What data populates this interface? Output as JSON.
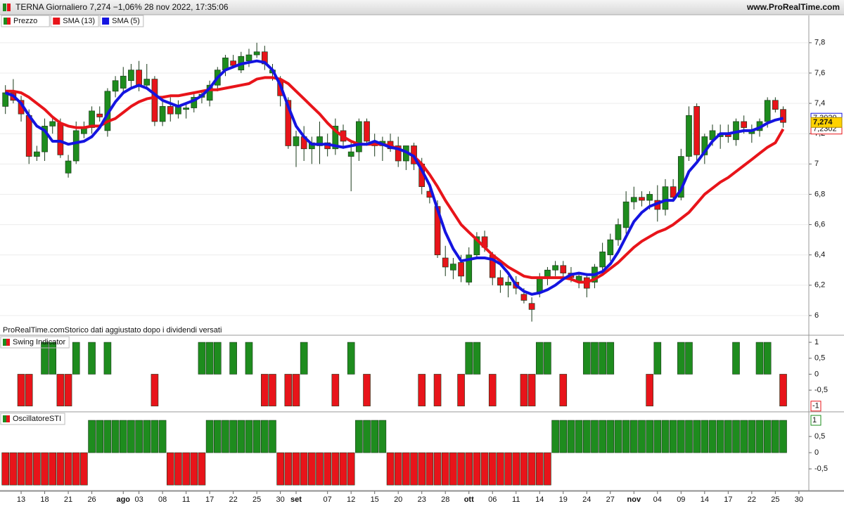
{
  "chart_data": [
    {
      "type": "candlestick",
      "title": "TERNA Giornaliero 7,274 −1,06% 28 nov 2022, 17:35:06",
      "source": "www.ProRealTime.com",
      "note": "ProRealTime.comStorico dati aggiustato dopo i dividendi versati",
      "categories": [
        null,
        null,
        "13",
        null,
        null,
        "18",
        null,
        null,
        "21",
        null,
        null,
        "26",
        null,
        null,
        null,
        "ago",
        null,
        "03",
        null,
        null,
        "08",
        null,
        null,
        "11",
        null,
        null,
        "17",
        null,
        null,
        "22",
        null,
        null,
        "25",
        null,
        null,
        "30",
        null,
        "set",
        null,
        null,
        null,
        "07",
        null,
        null,
        "12",
        null,
        null,
        "15",
        null,
        null,
        "20",
        null,
        null,
        "23",
        null,
        null,
        "28",
        null,
        null,
        "ott",
        null,
        null,
        "06",
        null,
        null,
        "11",
        null,
        null,
        "14",
        null,
        null,
        "19",
        null,
        null,
        "24",
        null,
        null,
        "27",
        null,
        null,
        "nov",
        null,
        null,
        "04",
        null,
        null,
        "09",
        null,
        null,
        "14",
        null,
        null,
        "17",
        null,
        null,
        "22",
        null,
        null,
        "25",
        null,
        null,
        "30"
      ],
      "ylim": [
        5.87,
        7.98
      ],
      "yticks": [
        6,
        {
          "value": 6.2,
          "label": "6,2"
        },
        {
          "value": 6.4,
          "label": "6,4"
        },
        {
          "value": 6.6,
          "label": "6,6"
        },
        {
          "value": 6.8,
          "label": "6,8"
        },
        7,
        {
          "value": 7.2,
          "label": "7,2"
        },
        {
          "value": 7.4,
          "label": "7,4"
        },
        {
          "value": 7.6,
          "label": "7,6"
        },
        {
          "value": 7.8,
          "label": "7,8"
        }
      ],
      "grid": true,
      "series": [
        {
          "name": "Prezzo",
          "type": "candlestick",
          "up_color": "#1e8c1e",
          "down_color": "#e8141a",
          "last_label": "7,274",
          "open": [
            7.38,
            7.47,
            7.42,
            7.32,
            7.05,
            7.08,
            7.25,
            7.27,
            6.94,
            7.02,
            7.2,
            7.24,
            7.33,
            7.22,
            7.48,
            7.5,
            7.55,
            7.62,
            7.52,
            7.56,
            7.28,
            7.38,
            7.33,
            7.36,
            7.37,
            7.44,
            7.42,
            7.52,
            7.62,
            7.68,
            7.62,
            7.68,
            7.72,
            7.74,
            7.6,
            7.55,
            7.42,
            7.12,
            7.18,
            7.1,
            7.12,
            7.14,
            7.1,
            7.22,
            7.05,
            7.08,
            7.28,
            7.15,
            7.12,
            7.15,
            7.12,
            7.02,
            7.12,
            7.0,
            6.82,
            6.72,
            6.38,
            6.3,
            6.35,
            6.22,
            6.4,
            6.52,
            6.4,
            6.25,
            6.2,
            6.22,
            6.14,
            6.08,
            6.15,
            6.25,
            6.3,
            6.33,
            6.28,
            6.22,
            6.25,
            6.22,
            6.32,
            6.4,
            6.5,
            6.58,
            6.75,
            6.78,
            6.76,
            6.76,
            6.7,
            6.85,
            6.78,
            7.05,
            7.38,
            7.06,
            7.16,
            7.18,
            7.2,
            7.16,
            7.28,
            7.2,
            7.22,
            7.28,
            7.42,
            7.36,
            null,
            null
          ],
          "high": [
            7.52,
            7.56,
            7.45,
            7.36,
            7.12,
            7.3,
            7.32,
            7.3,
            7.06,
            7.28,
            7.28,
            7.38,
            7.38,
            7.5,
            7.58,
            7.64,
            7.66,
            7.68,
            7.66,
            7.58,
            7.42,
            7.44,
            7.42,
            7.4,
            7.46,
            7.48,
            7.55,
            7.64,
            7.72,
            7.72,
            7.74,
            7.76,
            7.8,
            7.78,
            7.66,
            7.58,
            7.44,
            7.22,
            7.25,
            7.18,
            7.28,
            7.2,
            7.3,
            7.26,
            7.14,
            7.3,
            7.3,
            7.2,
            7.18,
            7.2,
            7.18,
            7.1,
            7.14,
            7.04,
            6.86,
            6.76,
            6.46,
            6.38,
            6.4,
            6.45,
            6.55,
            6.56,
            6.42,
            6.3,
            6.26,
            6.26,
            6.18,
            6.12,
            6.28,
            6.32,
            6.36,
            6.36,
            6.32,
            6.28,
            6.28,
            6.34,
            6.48,
            6.54,
            6.64,
            6.82,
            6.85,
            6.82,
            6.82,
            6.86,
            6.9,
            6.9,
            7.1,
            7.38,
            7.4,
            7.2,
            7.26,
            7.26,
            7.26,
            7.3,
            7.32,
            7.26,
            7.3,
            7.44,
            7.44,
            7.38,
            null,
            null
          ],
          "low": [
            7.33,
            7.4,
            7.28,
            7.0,
            7.02,
            7.02,
            7.2,
            7.04,
            6.91,
            7.0,
            7.17,
            7.2,
            7.28,
            7.18,
            7.44,
            7.46,
            7.5,
            7.48,
            7.5,
            7.25,
            7.25,
            7.28,
            7.3,
            7.3,
            7.34,
            7.4,
            7.38,
            7.48,
            7.58,
            7.63,
            7.6,
            7.64,
            7.7,
            7.62,
            7.55,
            7.38,
            7.1,
            6.98,
            7.02,
            7.0,
            7.0,
            7.05,
            7.06,
            7.1,
            6.82,
            7.02,
            7.12,
            7.05,
            7.02,
            7.08,
            6.98,
            6.96,
            6.96,
            6.8,
            6.74,
            6.38,
            6.26,
            6.24,
            6.22,
            6.2,
            6.38,
            6.42,
            6.2,
            6.15,
            6.12,
            6.14,
            6.08,
            5.96,
            6.12,
            6.2,
            6.26,
            6.25,
            6.22,
            6.18,
            6.12,
            6.18,
            6.28,
            6.36,
            6.46,
            6.54,
            6.7,
            6.72,
            6.7,
            6.62,
            6.66,
            6.75,
            6.76,
            7.02,
            7.02,
            7.0,
            7.12,
            7.1,
            7.14,
            7.12,
            7.2,
            7.14,
            7.18,
            7.24,
            7.34,
            7.24,
            null,
            null
          ],
          "close": [
            7.47,
            7.42,
            7.33,
            7.05,
            7.08,
            7.25,
            7.28,
            7.06,
            7.02,
            7.22,
            7.24,
            7.35,
            7.31,
            7.48,
            7.55,
            7.58,
            7.62,
            7.52,
            7.56,
            7.28,
            7.38,
            7.33,
            7.38,
            7.37,
            7.44,
            7.46,
            7.52,
            7.62,
            7.7,
            7.65,
            7.71,
            7.72,
            7.74,
            7.66,
            7.62,
            7.45,
            7.12,
            7.18,
            7.1,
            7.14,
            7.18,
            7.1,
            7.25,
            7.15,
            7.08,
            7.28,
            7.15,
            7.12,
            7.15,
            7.1,
            7.02,
            7.12,
            7.0,
            6.85,
            6.78,
            6.4,
            6.32,
            6.34,
            6.26,
            6.4,
            6.52,
            6.45,
            6.25,
            6.2,
            6.22,
            6.18,
            6.1,
            6.04,
            6.25,
            6.3,
            6.33,
            6.28,
            6.25,
            6.26,
            6.18,
            6.32,
            6.42,
            6.5,
            6.6,
            6.75,
            6.78,
            6.76,
            6.8,
            6.7,
            6.85,
            6.78,
            7.05,
            7.32,
            7.06,
            7.18,
            7.22,
            7.2,
            7.18,
            7.28,
            7.24,
            7.22,
            7.28,
            7.42,
            7.36,
            7.274,
            null,
            null
          ]
        },
        {
          "name": "SMA (13)",
          "type": "line",
          "color": "#e8141a",
          "last_label": "7,2302",
          "values": [
            7.48,
            7.48,
            7.47,
            7.44,
            7.4,
            7.36,
            7.31,
            7.27,
            7.25,
            7.24,
            7.24,
            7.25,
            7.25,
            7.28,
            7.3,
            7.34,
            7.38,
            7.41,
            7.43,
            7.44,
            7.44,
            7.45,
            7.45,
            7.46,
            7.47,
            7.48,
            7.49,
            7.49,
            7.5,
            7.51,
            7.52,
            7.53,
            7.56,
            7.57,
            7.57,
            7.56,
            7.53,
            7.48,
            7.43,
            7.38,
            7.33,
            7.27,
            7.22,
            7.18,
            7.15,
            7.13,
            7.13,
            7.13,
            7.13,
            7.12,
            7.1,
            7.08,
            7.05,
            7.0,
            6.93,
            6.85,
            6.76,
            6.68,
            6.6,
            6.55,
            6.5,
            6.45,
            6.4,
            6.36,
            6.32,
            6.29,
            6.26,
            6.25,
            6.25,
            6.25,
            6.25,
            6.25,
            6.24,
            6.22,
            6.22,
            6.24,
            6.27,
            6.31,
            6.35,
            6.4,
            6.45,
            6.49,
            6.52,
            6.55,
            6.57,
            6.6,
            6.64,
            6.68,
            6.74,
            6.8,
            6.84,
            6.88,
            6.91,
            6.95,
            6.99,
            7.03,
            7.07,
            7.11,
            7.14,
            7.2302,
            null,
            null
          ]
        },
        {
          "name": "SMA (5)",
          "type": "line",
          "color": "#1414e0",
          "last_label": "7,3020",
          "values": [
            7.47,
            7.45,
            7.4,
            7.32,
            7.25,
            7.22,
            7.15,
            7.15,
            7.13,
            7.14,
            7.15,
            7.18,
            7.24,
            7.33,
            7.41,
            7.47,
            7.5,
            7.52,
            7.5,
            7.46,
            7.42,
            7.4,
            7.38,
            7.4,
            7.42,
            7.45,
            7.5,
            7.57,
            7.62,
            7.64,
            7.66,
            7.67,
            7.68,
            7.67,
            7.62,
            7.52,
            7.38,
            7.25,
            7.18,
            7.13,
            7.13,
            7.13,
            7.12,
            7.11,
            7.12,
            7.13,
            7.13,
            7.15,
            7.13,
            7.11,
            7.1,
            7.08,
            7.05,
            6.96,
            6.86,
            6.7,
            6.55,
            6.44,
            6.36,
            6.37,
            6.38,
            6.38,
            6.37,
            6.34,
            6.28,
            6.2,
            6.16,
            6.14,
            6.15,
            6.17,
            6.2,
            6.24,
            6.27,
            6.28,
            6.27,
            6.27,
            6.29,
            6.34,
            6.42,
            6.52,
            6.62,
            6.68,
            6.72,
            6.74,
            6.76,
            6.76,
            6.83,
            6.95,
            7.01,
            7.08,
            7.15,
            7.2,
            7.2,
            7.21,
            7.22,
            7.22,
            7.24,
            7.27,
            7.29,
            7.302,
            null,
            null
          ]
        }
      ]
    },
    {
      "type": "bar",
      "title": "Swing Indicator",
      "up_color": "#1e8c1e",
      "down_color": "#e8141a",
      "last_label": "-1",
      "ylim": [
        -1.18,
        1.2
      ],
      "yticks": [
        1,
        {
          "value": 0.5,
          "label": "0,5"
        },
        0,
        {
          "value": -0.5,
          "label": "-0,5"
        }
      ],
      "values": [
        0,
        0,
        -1,
        -1,
        0,
        1,
        1,
        -1,
        -1,
        1,
        0,
        1,
        0,
        1,
        0,
        0,
        0,
        0,
        0,
        -1,
        0,
        0,
        0,
        0,
        0,
        1,
        1,
        1,
        0,
        1,
        0,
        1,
        0,
        -1,
        -1,
        0,
        -1,
        -1,
        1,
        0,
        0,
        0,
        -1,
        0,
        1,
        0,
        -1,
        0,
        0,
        0,
        0,
        0,
        0,
        -1,
        0,
        -1,
        0,
        0,
        -1,
        1,
        1,
        0,
        -1,
        0,
        0,
        0,
        -1,
        -1,
        1,
        1,
        0,
        -1,
        0,
        0,
        1,
        1,
        1,
        1,
        0,
        0,
        0,
        0,
        -1,
        1,
        0,
        0,
        1,
        1,
        0,
        0,
        0,
        0,
        0,
        1,
        0,
        0,
        1,
        1,
        0,
        -1,
        null,
        null
      ]
    },
    {
      "type": "bar",
      "title": "OscillatoreSTI",
      "up_color": "#1e8c1e",
      "down_color": "#e8141a",
      "last_label": "1",
      "ylim": [
        -1.17,
        1.24
      ],
      "yticks": [
        {
          "value": 0.5,
          "label": "0,5"
        },
        0,
        {
          "value": -0.5,
          "label": "-0,5"
        }
      ],
      "values": [
        -1,
        -1,
        -1,
        -1,
        -1,
        -1,
        -1,
        -1,
        -1,
        -1,
        -1,
        1,
        1,
        1,
        1,
        1,
        1,
        1,
        1,
        1,
        1,
        -1,
        -1,
        -1,
        -1,
        -1,
        1,
        1,
        1,
        1,
        1,
        1,
        1,
        1,
        1,
        -1,
        -1,
        -1,
        -1,
        -1,
        -1,
        -1,
        -1,
        -1,
        -1,
        1,
        1,
        1,
        1,
        -1,
        -1,
        -1,
        -1,
        -1,
        -1,
        -1,
        -1,
        -1,
        -1,
        -1,
        -1,
        -1,
        -1,
        -1,
        -1,
        -1,
        -1,
        -1,
        -1,
        -1,
        1,
        1,
        1,
        1,
        1,
        1,
        1,
        1,
        1,
        1,
        1,
        1,
        1,
        1,
        1,
        1,
        1,
        1,
        1,
        1,
        1,
        1,
        1,
        1,
        1,
        1,
        1,
        1,
        1,
        1,
        null,
        null
      ]
    }
  ]
}
